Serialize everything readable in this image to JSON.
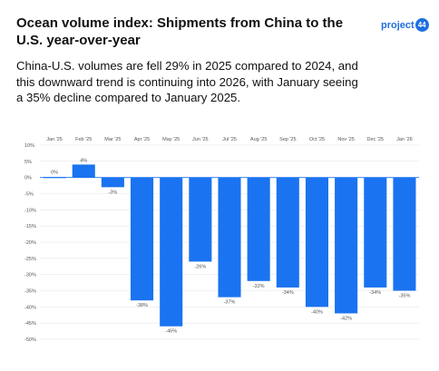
{
  "title": "Ocean volume index: Shipments from China to the U.S. year-over-year",
  "subtitle": "China-U.S. volumes are  fell 29% in 2025 compared to 2024, and this downward trend is continuing into 2026, with January seeing a 35% decline compared to January 2025.",
  "logo": {
    "text": "project",
    "badge": "44"
  },
  "colors": {
    "bar": "#1a73f0",
    "grid": "#e6e6e6",
    "zero_line": "#1a73f0"
  },
  "chart_data": {
    "type": "bar",
    "categories": [
      "Jan '25",
      "Feb '25",
      "Mar '25",
      "Apr '25",
      "May '25",
      "Jun '25",
      "Jul '25",
      "Aug '25",
      "Sep '25",
      "Oct '25",
      "Nov '25",
      "Dec '25",
      "Jan '26"
    ],
    "values": [
      0,
      4,
      -3,
      -38,
      -46,
      -26,
      -37,
      -32,
      -34,
      -40,
      -42,
      -34,
      -35
    ],
    "data_labels": [
      "0%",
      "4%",
      "-3%",
      "-38%",
      "-46%",
      "-26%",
      "-37%",
      "-32%",
      "-34%",
      "-40%",
      "-42%",
      "-34%",
      "-35%"
    ],
    "y_ticks": [
      10,
      5,
      0,
      -5,
      -10,
      -15,
      -20,
      -25,
      -30,
      -35,
      -40,
      -45,
      -50
    ],
    "y_tick_labels": [
      "10%",
      "5%",
      "0%",
      "-5%",
      "-10%",
      "-15%",
      "-20%",
      "-25%",
      "-30%",
      "-35%",
      "-40%",
      "-45%",
      "-50%"
    ],
    "ylim": [
      -50,
      10
    ],
    "grid": true,
    "legend": "none"
  }
}
